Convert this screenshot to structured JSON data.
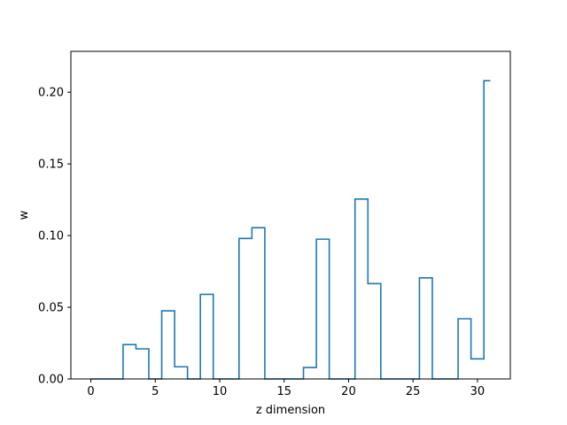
{
  "chart_data": {
    "type": "line",
    "style": "step",
    "title": "",
    "xlabel": "z dimension",
    "ylabel": "w",
    "xlim": [
      -1.55,
      32.55
    ],
    "ylim": [
      0,
      0.2285
    ],
    "xticks": [
      "0",
      "5",
      "10",
      "15",
      "20",
      "25",
      "30"
    ],
    "yticks": [
      "0.00",
      "0.05",
      "0.10",
      "0.15",
      "0.20"
    ],
    "grid": false,
    "legend": false,
    "series": [
      {
        "color": "#1f77b4",
        "x": [
          0,
          1,
          2,
          3,
          4,
          5,
          6,
          7,
          8,
          9,
          10,
          11,
          12,
          13,
          14,
          15,
          16,
          17,
          18,
          19,
          20,
          21,
          22,
          23,
          24,
          25,
          26,
          27,
          28,
          29,
          30,
          31
        ],
        "y": [
          0,
          0,
          0,
          0.024,
          0.021,
          0,
          0.0475,
          0.0085,
          0,
          0.059,
          0,
          0,
          0.098,
          0.1055,
          0,
          0,
          0,
          0.008,
          0.0975,
          0,
          0,
          0.1255,
          0.0665,
          0,
          0,
          0,
          0.0705,
          0,
          0,
          0.042,
          0.014,
          0.208
        ]
      }
    ]
  }
}
